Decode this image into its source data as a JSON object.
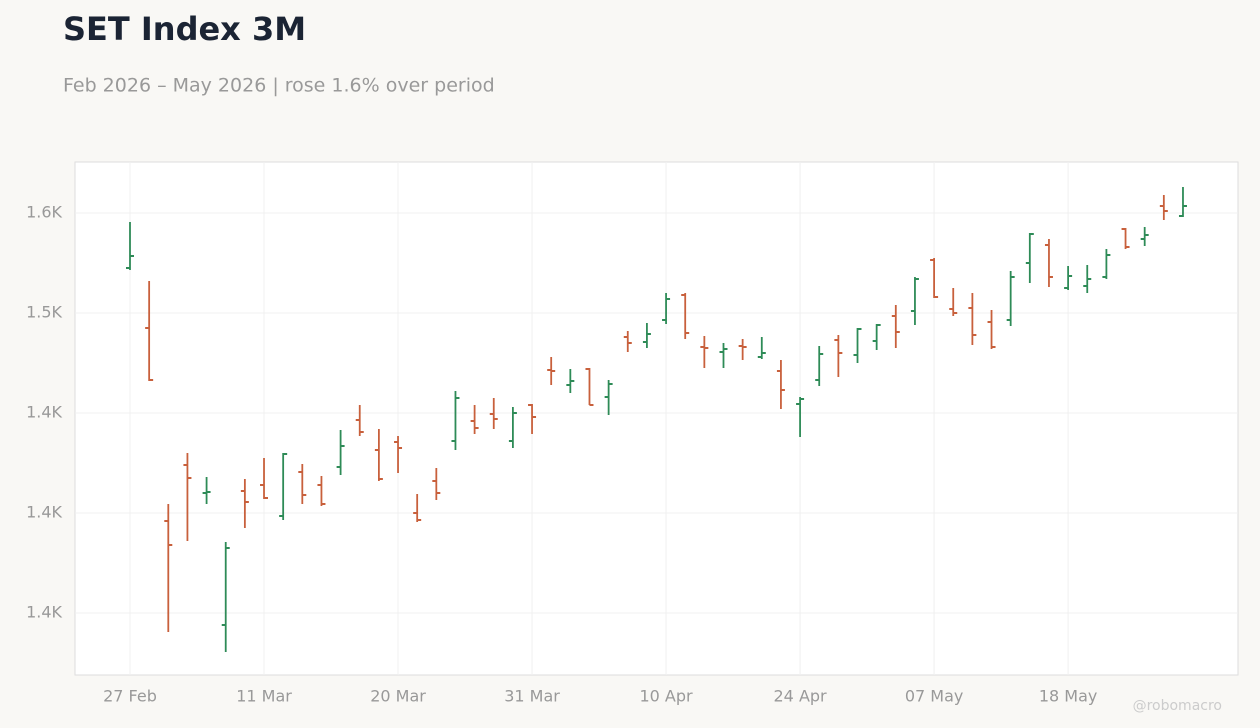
{
  "chart_data": {
    "type": "ohlc",
    "title": "SET Index 3M",
    "subtitle": "Feb 2026 – May 2026 | rose 1.6% over period",
    "watermark": "@robomacro",
    "categories": [
      "27 Feb",
      null,
      null,
      null,
      null,
      null,
      null,
      "11 Mar",
      null,
      null,
      null,
      null,
      null,
      null,
      "20 Mar",
      null,
      null,
      null,
      null,
      null,
      null,
      "31 Mar",
      null,
      null,
      null,
      null,
      null,
      null,
      "10 Apr",
      null,
      null,
      null,
      null,
      null,
      null,
      "24 Apr",
      null,
      null,
      null,
      null,
      null,
      null,
      "07 May",
      null,
      null,
      null,
      null,
      null,
      null,
      "18 May",
      null,
      null,
      null,
      null,
      null,
      null
    ],
    "open": [
      1522.5,
      1492.5,
      1396,
      1424,
      1410,
      1344,
      1411,
      1414,
      1398.5,
      1420.5,
      1414,
      1423,
      1446.5,
      1431.5,
      1435.5,
      1400,
      1416,
      1436,
      1446,
      1449.5,
      1436,
      1454,
      1471.5,
      1464,
      1472,
      1458,
      1488,
      1485.5,
      1496.5,
      1509,
      1483,
      1480.5,
      1483.5,
      1478,
      1471,
      1454.5,
      1466.5,
      1486.5,
      1479,
      1486,
      1498.5,
      1501,
      1526.5,
      1502,
      1502.5,
      1495.5,
      1496.5,
      1525,
      1534,
      1512.5,
      1513.5,
      1518,
      1542,
      1537,
      1553.5,
      1548.5
    ],
    "high": [
      1545.5,
      1516,
      1404.5,
      1430,
      1418,
      1385.5,
      1417,
      1427.5,
      1430,
      1424.5,
      1418.5,
      1441.5,
      1454,
      1442,
      1438.5,
      1409.5,
      1422.5,
      1461,
      1454,
      1457.5,
      1453,
      1454.5,
      1478,
      1472,
      1472.5,
      1466.5,
      1491,
      1495,
      1510,
      1510,
      1488.5,
      1485,
      1487,
      1488,
      1476.5,
      1458,
      1483.5,
      1489,
      1492.5,
      1494.5,
      1504,
      1518,
      1527.5,
      1512.5,
      1510,
      1501.5,
      1521,
      1540,
      1537,
      1523.5,
      1524,
      1532,
      1542.5,
      1543,
      1559,
      1563
    ],
    "low": [
      1521.5,
      1466,
      1340.5,
      1386,
      1404.5,
      1330.5,
      1392.5,
      1407,
      1396.5,
      1404.5,
      1403.5,
      1419,
      1438.5,
      1416,
      1420,
      1395.5,
      1406.5,
      1431.5,
      1439.5,
      1442,
      1432.5,
      1439.5,
      1464,
      1460,
      1454,
      1449,
      1480.5,
      1482.5,
      1494.5,
      1487,
      1472.5,
      1472.5,
      1476.5,
      1477,
      1452,
      1438,
      1463.5,
      1468,
      1475,
      1481.5,
      1482.5,
      1494,
      1507.5,
      1498.5,
      1484,
      1482,
      1493.5,
      1515,
      1513,
      1511.5,
      1510,
      1517,
      1532,
      1533.5,
      1546.5,
      1548
    ],
    "close": [
      1528.5,
      1466.5,
      1384,
      1417.5,
      1410.5,
      1382.5,
      1405.5,
      1407.5,
      1429.5,
      1409,
      1404.5,
      1433.5,
      1440.5,
      1417,
      1432.5,
      1396.5,
      1410,
      1457.5,
      1442.5,
      1447,
      1450,
      1448,
      1471,
      1466,
      1454,
      1464.5,
      1485,
      1489.5,
      1507,
      1490,
      1482.5,
      1482,
      1483,
      1480,
      1461.5,
      1457,
      1479.5,
      1480,
      1492,
      1494,
      1490.5,
      1517,
      1508,
      1500,
      1489,
      1483,
      1518,
      1539.5,
      1518,
      1518.5,
      1517,
      1529,
      1533,
      1539,
      1551,
      1553.5
    ],
    "up_color": "#2e8b57",
    "down_color": "#c8603c",
    "ylim": [
      1319,
      1575.5
    ],
    "yticks": [
      {
        "value": 1550,
        "label": "1.6K"
      },
      {
        "value": 1500,
        "label": "1.5K"
      },
      {
        "value": 1450,
        "label": "1.4K"
      },
      {
        "value": 1400,
        "label": "1.4K"
      },
      {
        "value": 1350,
        "label": "1.4K"
      }
    ],
    "grid": true
  }
}
